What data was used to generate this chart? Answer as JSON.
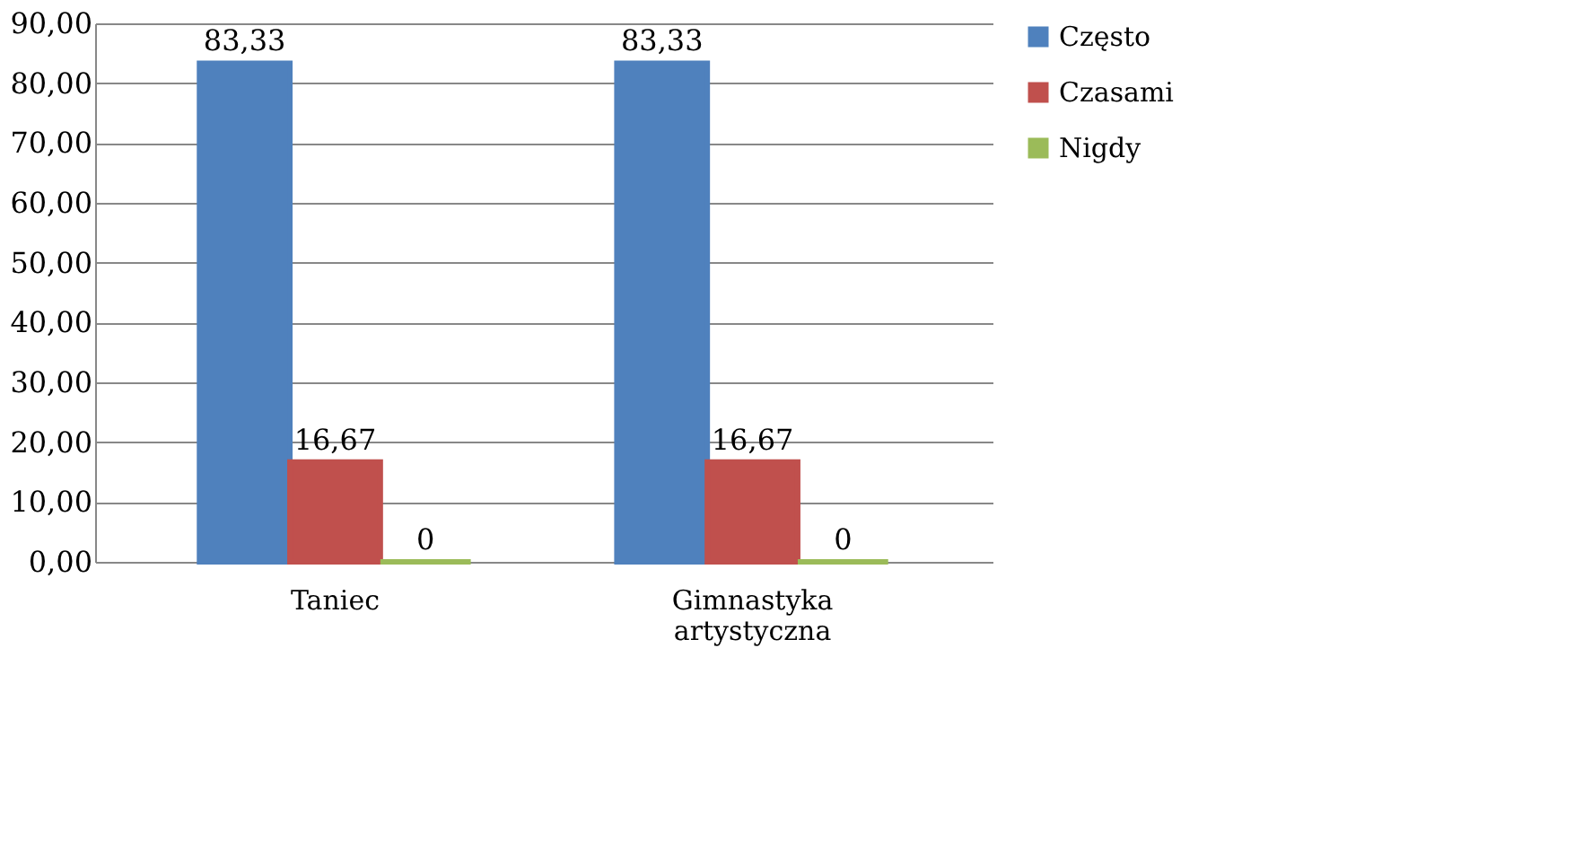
{
  "chart_data": {
    "type": "bar",
    "categories": [
      "Taniec",
      "Gimnastyka artystyczna"
    ],
    "series": [
      {
        "name": "Często",
        "color": "#4f81bd",
        "values": [
          83.33,
          83.33
        ],
        "value_labels": [
          "83,33",
          "83,33"
        ]
      },
      {
        "name": "Czasami",
        "color": "#c0504d",
        "values": [
          16.67,
          16.67
        ],
        "value_labels": [
          "16,67",
          "16,67"
        ]
      },
      {
        "name": "Nigdy",
        "color": "#9bbb59",
        "values": [
          0,
          0
        ],
        "value_labels": [
          "0",
          "0"
        ]
      }
    ],
    "ylim": [
      0,
      90
    ],
    "yticks": [
      {
        "value": 0,
        "label": "0,00"
      },
      {
        "value": 10,
        "label": "10,00"
      },
      {
        "value": 20,
        "label": "20,00"
      },
      {
        "value": 30,
        "label": "30,00"
      },
      {
        "value": 40,
        "label": "40,00"
      },
      {
        "value": 50,
        "label": "50,00"
      },
      {
        "value": 60,
        "label": "60,00"
      },
      {
        "value": 70,
        "label": "70,00"
      },
      {
        "value": 80,
        "label": "80,00"
      },
      {
        "value": 90,
        "label": "90,00"
      }
    ],
    "grid": "y",
    "legend": "right"
  }
}
